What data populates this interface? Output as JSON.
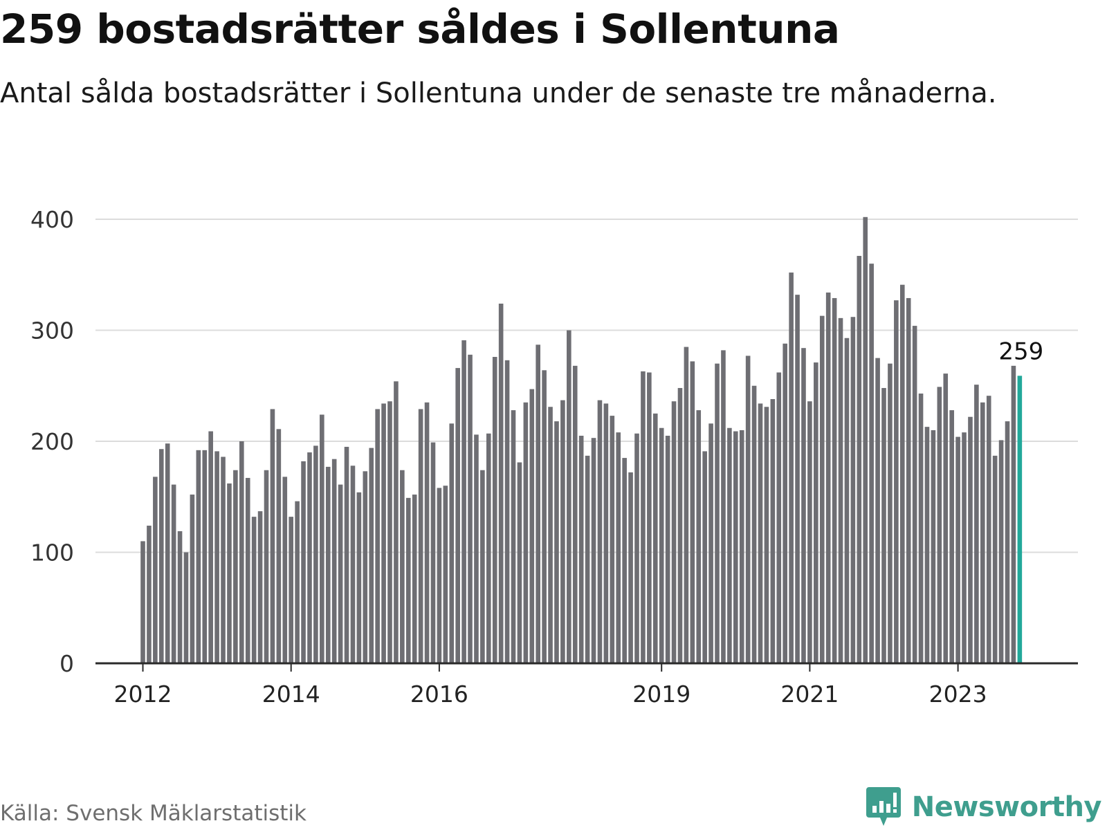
{
  "title": "259 bostadsrätter såldes i Sollentuna",
  "subtitle": "Antal sålda bostadsrätter i Sollentuna under de senaste tre månaderna.",
  "source": "Källa: Svensk Mäklarstatistik",
  "brand": {
    "name": "Newsworthy",
    "icon": "newsworthy-chart-bubble-icon",
    "color": "#3f9e8e"
  },
  "colors": {
    "bar": "#6e6e73",
    "highlight": "#22a89a",
    "grid": "#dcdcdc",
    "axis": "#2a2a2a"
  },
  "chart_data": {
    "type": "bar",
    "title": "259 bostadsrätter såldes i Sollentuna",
    "xlabel": "",
    "ylabel": "",
    "ylim": [
      0,
      440
    ],
    "yticks": [
      0,
      100,
      200,
      300,
      400
    ],
    "grid": true,
    "start": "2012-01",
    "xticks": [
      {
        "label": "2012",
        "index": 0
      },
      {
        "label": "2014",
        "index": 24
      },
      {
        "label": "2016",
        "index": 48
      },
      {
        "label": "2019",
        "index": 84
      },
      {
        "label": "2021",
        "index": 108
      },
      {
        "label": "2023",
        "index": 132
      }
    ],
    "values": [
      110,
      124,
      168,
      193,
      198,
      161,
      119,
      100,
      152,
      192,
      192,
      209,
      191,
      186,
      162,
      174,
      200,
      167,
      132,
      137,
      174,
      229,
      211,
      168,
      132,
      146,
      182,
      190,
      196,
      224,
      177,
      184,
      161,
      195,
      178,
      154,
      173,
      194,
      229,
      234,
      236,
      254,
      174,
      149,
      152,
      229,
      235,
      199,
      158,
      160,
      216,
      266,
      291,
      278,
      206,
      174,
      207,
      276,
      324,
      273,
      228,
      181,
      235,
      247,
      287,
      264,
      231,
      218,
      237,
      300,
      268,
      205,
      187,
      203,
      237,
      234,
      223,
      208,
      185,
      172,
      207,
      263,
      262,
      225,
      212,
      205,
      236,
      248,
      285,
      272,
      228,
      191,
      216,
      270,
      282,
      212,
      209,
      210,
      277,
      250,
      234,
      231,
      238,
      262,
      288,
      352,
      332,
      284,
      236,
      271,
      313,
      334,
      329,
      311,
      293,
      312,
      367,
      402,
      360,
      275,
      248,
      270,
      327,
      341,
      329,
      304,
      243,
      213,
      210,
      249,
      261,
      228,
      204,
      208,
      222,
      251,
      235,
      241,
      187,
      201,
      218,
      268,
      259
    ],
    "highlight_last": true,
    "annotation": {
      "index": 142,
      "label": "259"
    }
  }
}
